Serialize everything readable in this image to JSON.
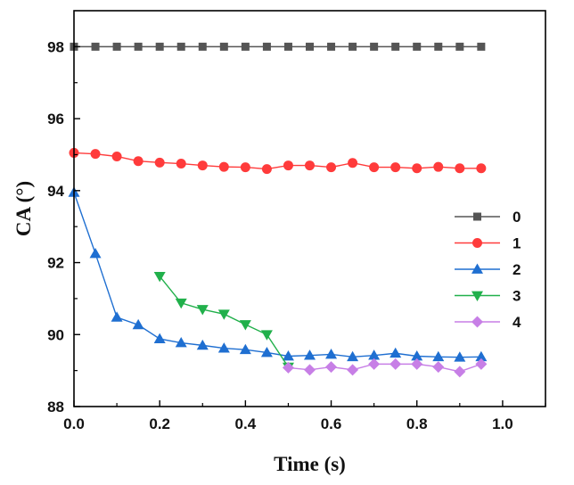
{
  "chart_data": {
    "type": "line",
    "title": "",
    "xlabel": "Time (s)",
    "ylabel": "CA (°)",
    "xlim": [
      0.0,
      1.1
    ],
    "ylim": [
      88,
      99
    ],
    "xticks": [
      "0.0",
      "0.2",
      "0.4",
      "0.6",
      "0.8",
      "1.0"
    ],
    "xtick_values": [
      0.0,
      0.2,
      0.4,
      0.6,
      0.8,
      1.0
    ],
    "yticks": [
      "88",
      "90",
      "92",
      "94",
      "96",
      "98"
    ],
    "ytick_values": [
      88,
      90,
      92,
      94,
      96,
      98
    ],
    "grid": false,
    "legend_position": "right",
    "series": [
      {
        "name": "0",
        "color": "#555555",
        "marker": "square",
        "x": [
          0.0,
          0.05,
          0.1,
          0.15,
          0.2,
          0.25,
          0.3,
          0.35,
          0.4,
          0.45,
          0.5,
          0.55,
          0.6,
          0.65,
          0.7,
          0.75,
          0.8,
          0.85,
          0.9,
          0.95
        ],
        "y": [
          98.0,
          98.0,
          98.0,
          98.0,
          98.0,
          98.0,
          98.0,
          98.0,
          98.0,
          98.0,
          98.0,
          98.0,
          98.0,
          98.0,
          98.0,
          98.0,
          98.0,
          98.0,
          98.0,
          98.0
        ]
      },
      {
        "name": "1",
        "color": "#ff3b3b",
        "marker": "circle",
        "x": [
          0.0,
          0.05,
          0.1,
          0.15,
          0.2,
          0.25,
          0.3,
          0.35,
          0.4,
          0.45,
          0.5,
          0.55,
          0.6,
          0.65,
          0.7,
          0.75,
          0.8,
          0.85,
          0.9,
          0.95
        ],
        "y": [
          95.05,
          95.02,
          94.95,
          94.82,
          94.78,
          94.75,
          94.7,
          94.66,
          94.65,
          94.6,
          94.7,
          94.7,
          94.65,
          94.77,
          94.65,
          94.65,
          94.62,
          94.66,
          94.62,
          94.62
        ]
      },
      {
        "name": "2",
        "color": "#1f6fd1",
        "marker": "triangle-up",
        "x": [
          0.0,
          0.05,
          0.1,
          0.15,
          0.2,
          0.25,
          0.3,
          0.35,
          0.4,
          0.45,
          0.5,
          0.55,
          0.6,
          0.65,
          0.7,
          0.75,
          0.8,
          0.85,
          0.9,
          0.95
        ],
        "y": [
          93.95,
          92.25,
          90.48,
          90.27,
          89.88,
          89.77,
          89.7,
          89.62,
          89.58,
          89.5,
          89.4,
          89.42,
          89.45,
          89.38,
          89.42,
          89.48,
          89.4,
          89.38,
          89.37,
          89.38
        ]
      },
      {
        "name": "3",
        "color": "#21b04b",
        "marker": "triangle-down",
        "x": [
          0.2,
          0.25,
          0.3,
          0.35,
          0.4,
          0.45,
          0.5
        ],
        "y": [
          91.62,
          90.88,
          90.7,
          90.57,
          90.28,
          90.0,
          89.1
        ]
      },
      {
        "name": "4",
        "color": "#c77fe6",
        "marker": "diamond",
        "x": [
          0.5,
          0.55,
          0.6,
          0.65,
          0.7,
          0.75,
          0.8,
          0.85,
          0.9,
          0.95
        ],
        "y": [
          89.08,
          89.02,
          89.1,
          89.02,
          89.18,
          89.18,
          89.18,
          89.1,
          88.97,
          89.18
        ]
      }
    ]
  }
}
